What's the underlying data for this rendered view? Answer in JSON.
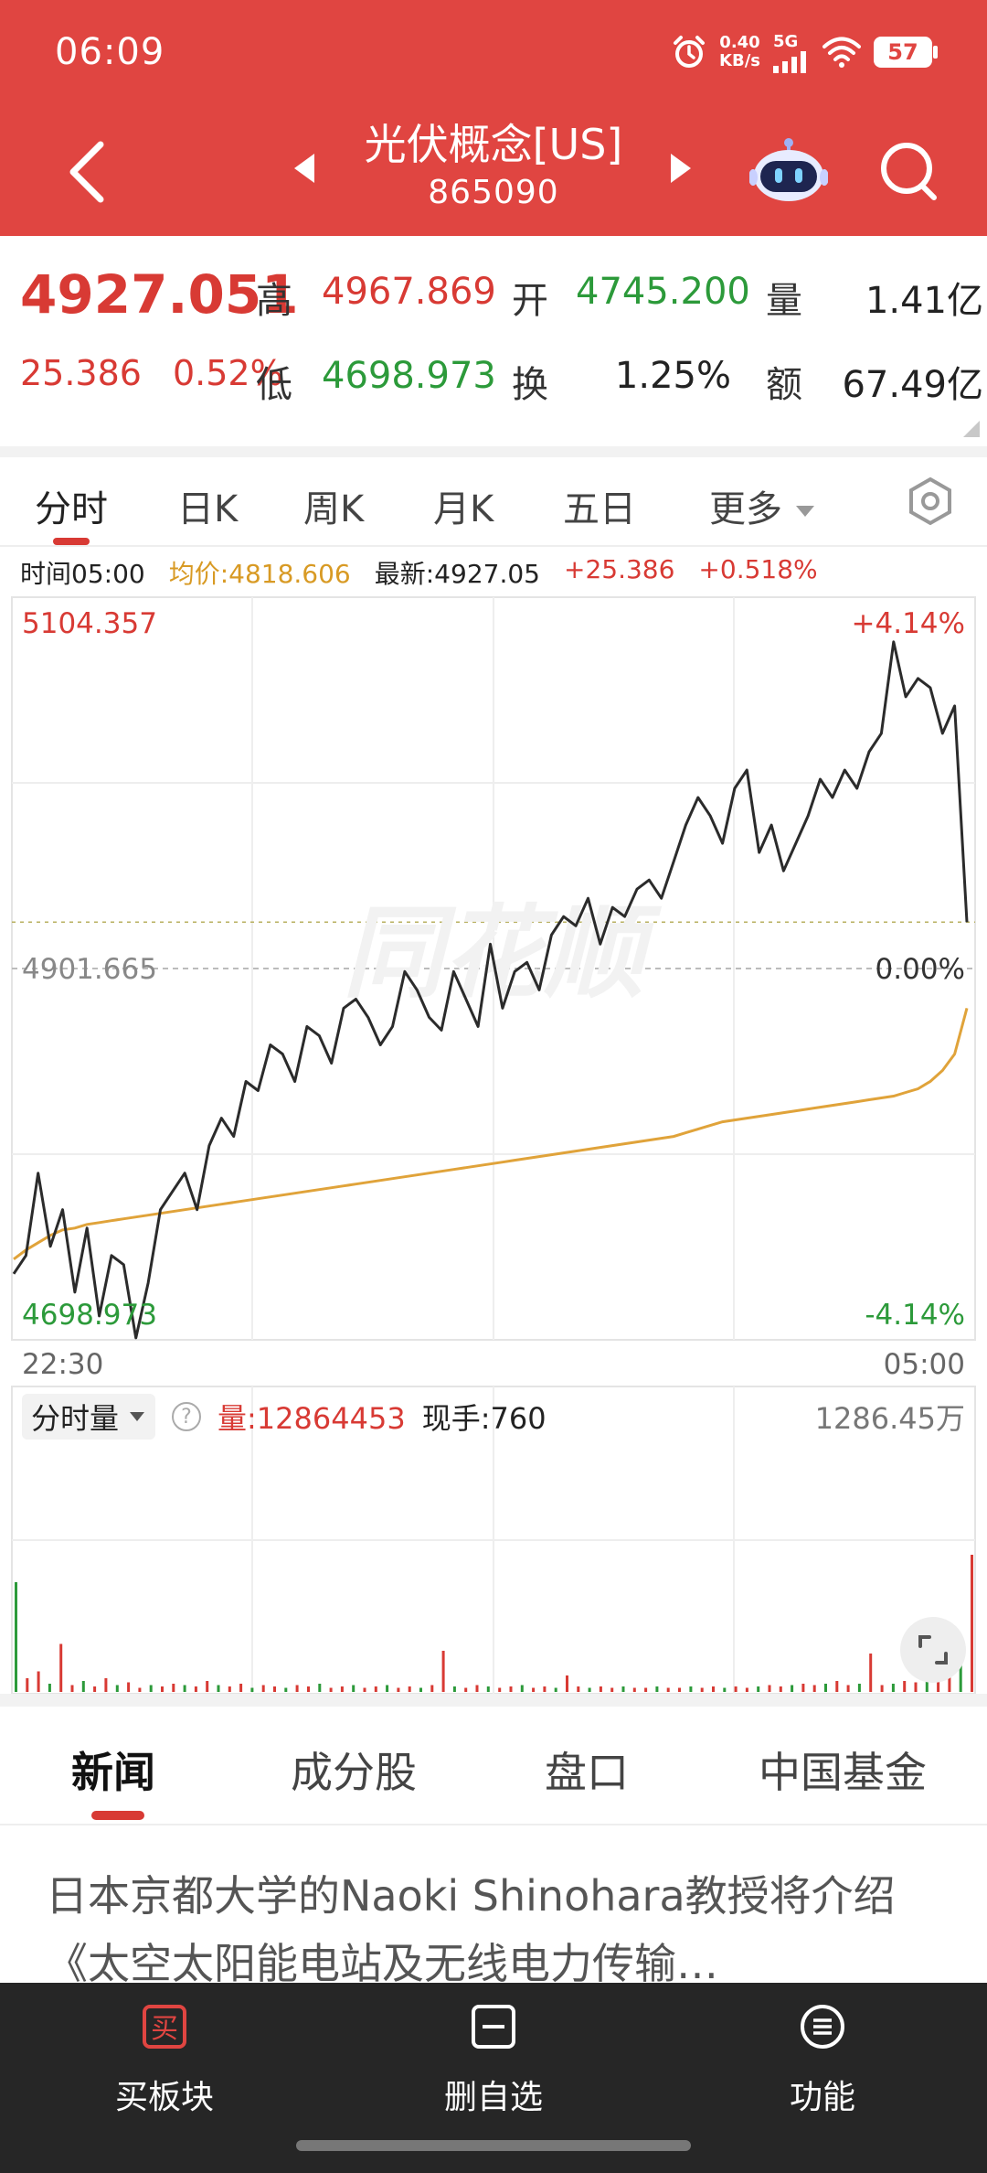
{
  "status_bar": {
    "time": "06:09",
    "net_speed_value": "0.40",
    "net_speed_unit": "KB/s",
    "network": "5G",
    "battery": "57",
    "icons": [
      "alarm-icon",
      "signal-icon",
      "wifi-icon",
      "battery-icon"
    ]
  },
  "header": {
    "stock_name": "光伏概念[US]",
    "stock_code": "865090",
    "icons": [
      "back-icon",
      "prev-icon",
      "next-icon",
      "robot-icon",
      "search-icon"
    ]
  },
  "quote": {
    "last_price": "4927.051",
    "change": "25.386",
    "change_pct": "0.52%",
    "high_label": "高",
    "high": "4967.869",
    "open_label": "开",
    "open": "4745.200",
    "volume_label": "量",
    "volume": "1.41亿",
    "low_label": "低",
    "low": "4698.973",
    "turnover_label": "换",
    "turnover": "1.25%",
    "amount_label": "额",
    "amount": "67.49亿"
  },
  "chart_tabs": {
    "items": [
      "分时",
      "日K",
      "周K",
      "月K",
      "五日",
      "更多"
    ],
    "active": "分时"
  },
  "info_line": {
    "time": "时间05:00",
    "avg": "均价:4818.606",
    "latest": "最新:4927.05",
    "change": "+25.386",
    "change_pct": "+0.518%"
  },
  "colors": {
    "header_bg": "#e04541",
    "up": "#d83a34",
    "down": "#2c9a3a",
    "price_line": "#2b2b2b",
    "avg_line": "#e0a33a",
    "bottom_bar_bg": "#262626"
  },
  "chart_data": {
    "type": "line",
    "y_top_label": "5104.357",
    "y_mid_label": "4901.665",
    "y_bottom_label": "4698.973",
    "pct_top_label": "+4.14%",
    "pct_mid_label": "0.00%",
    "pct_bottom_label": "-4.14%",
    "x_start_label": "22:30",
    "x_end_label": "05:00",
    "ylim": [
      4698.973,
      5104.357
    ],
    "prev_close": 4901.665,
    "watermark": "同花顺",
    "price_series": [
      4735,
      4745,
      4790,
      4750,
      4770,
      4725,
      4760,
      4712,
      4745,
      4740,
      4700,
      4730,
      4770,
      4780,
      4790,
      4770,
      4805,
      4820,
      4810,
      4840,
      4835,
      4860,
      4855,
      4840,
      4870,
      4865,
      4850,
      4880,
      4885,
      4875,
      4860,
      4870,
      4900,
      4890,
      4875,
      4868,
      4900,
      4885,
      4870,
      4915,
      4880,
      4900,
      4905,
      4890,
      4920,
      4930,
      4925,
      4940,
      4915,
      4935,
      4930,
      4945,
      4950,
      4940,
      4960,
      4980,
      4995,
      4985,
      4970,
      5000,
      5010,
      4965,
      4980,
      4955,
      4970,
      4985,
      5005,
      4995,
      5010,
      5000,
      5020,
      5030,
      5080,
      5050,
      5060,
      5055,
      5030,
      5045,
      4927
    ],
    "avg_series": [
      4743,
      4748,
      4752,
      4756,
      4759,
      4760,
      4762,
      4763,
      4764,
      4765,
      4766,
      4767,
      4768,
      4769,
      4770,
      4771,
      4772,
      4773,
      4774,
      4775,
      4776,
      4777,
      4778,
      4779,
      4780,
      4781,
      4782,
      4783,
      4784,
      4785,
      4786,
      4787,
      4788,
      4789,
      4790,
      4791,
      4792,
      4793,
      4794,
      4795,
      4796,
      4797,
      4798,
      4799,
      4800,
      4801,
      4802,
      4803,
      4804,
      4805,
      4806,
      4807,
      4808,
      4809,
      4810,
      4812,
      4814,
      4816,
      4818,
      4819,
      4820,
      4821,
      4822,
      4823,
      4824,
      4825,
      4826,
      4827,
      4828,
      4829,
      4830,
      4831,
      4832,
      4834,
      4836,
      4840,
      4846,
      4855,
      4880
    ]
  },
  "volume": {
    "dropdown_label": "分时量",
    "help": "?",
    "volume_text": "量:12864453",
    "current_hand": "现手:760",
    "max_label": "1286.45万",
    "bars": [
      0.8,
      0.1,
      0.15,
      0.06,
      0.35,
      0.05,
      0.08,
      0.04,
      0.1,
      0.05,
      0.07,
      0.03,
      0.05,
      0.04,
      0.06,
      0.05,
      0.04,
      0.08,
      0.05,
      0.04,
      0.06,
      0.03,
      0.05,
      0.04,
      0.03,
      0.05,
      0.04,
      0.06,
      0.03,
      0.04,
      0.05,
      0.03,
      0.04,
      0.05,
      0.03,
      0.04,
      0.03,
      0.05,
      0.3,
      0.04,
      0.03,
      0.05,
      0.04,
      0.03,
      0.04,
      0.05,
      0.03,
      0.04,
      0.03,
      0.12,
      0.04,
      0.03,
      0.04,
      0.03,
      0.04,
      0.03,
      0.03,
      0.04,
      0.03,
      0.03,
      0.04,
      0.03,
      0.04,
      0.03,
      0.04,
      0.03,
      0.04,
      0.05,
      0.04,
      0.05,
      0.06,
      0.05,
      0.06,
      0.08,
      0.05,
      0.06,
      0.28,
      0.05,
      0.06,
      0.08,
      0.07,
      0.09,
      0.1,
      0.12,
      0.3,
      1.0
    ]
  },
  "news_tabs": {
    "items": [
      "新闻",
      "成分股",
      "盘口",
      "中国基金"
    ],
    "active": "新闻"
  },
  "news": {
    "text": "日本京都大学的Naoki Shinohara教授将介绍《太空太阳能电站及无线电力传输…"
  },
  "bottom_bar": {
    "items": [
      {
        "label": "买板块",
        "icon": "buy-icon",
        "glyph": "买"
      },
      {
        "label": "删自选",
        "icon": "remove-watchlist-icon"
      },
      {
        "label": "功能",
        "icon": "menu-icon"
      }
    ]
  }
}
